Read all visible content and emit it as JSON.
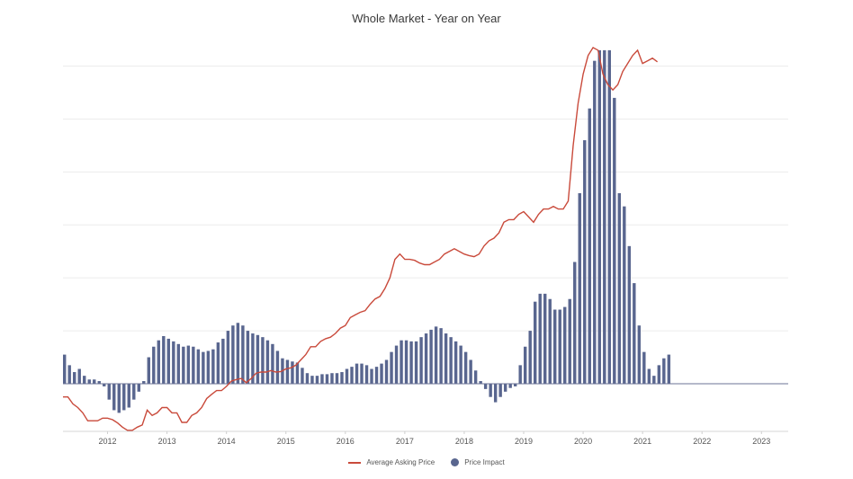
{
  "chart_data": {
    "type": "bar+line",
    "title": "Whole Market - Year on Year",
    "x_tick_labels": [
      "2012",
      "2013",
      "2014",
      "2015",
      "2016",
      "2017",
      "2018",
      "2019",
      "2020",
      "2021",
      "2022",
      "2023"
    ],
    "x_range": [
      2011.25,
      2023.45
    ],
    "y_range": [
      -0.9,
      6.4
    ],
    "grid": "horizontal",
    "legend_position": "bottom",
    "series": [
      {
        "name": "Average Asking Price",
        "type": "line",
        "color": "#c94a3b",
        "x_start": 2011.25,
        "x_step": 0.08333,
        "values": [
          -0.25,
          -0.25,
          -0.38,
          -0.45,
          -0.55,
          -0.7,
          -0.7,
          -0.7,
          -0.65,
          -0.65,
          -0.68,
          -0.74,
          -0.82,
          -0.88,
          -0.88,
          -0.82,
          -0.78,
          -0.5,
          -0.6,
          -0.55,
          -0.45,
          -0.45,
          -0.55,
          -0.55,
          -0.73,
          -0.73,
          -0.6,
          -0.55,
          -0.45,
          -0.28,
          -0.2,
          -0.13,
          -0.13,
          -0.05,
          0.05,
          0.08,
          0.1,
          0.02,
          0.1,
          0.2,
          0.22,
          0.22,
          0.25,
          0.22,
          0.23,
          0.28,
          0.3,
          0.35,
          0.45,
          0.55,
          0.7,
          0.7,
          0.8,
          0.85,
          0.88,
          0.95,
          1.05,
          1.1,
          1.25,
          1.3,
          1.35,
          1.38,
          1.5,
          1.6,
          1.65,
          1.8,
          2.0,
          2.35,
          2.45,
          2.35,
          2.35,
          2.33,
          2.28,
          2.25,
          2.25,
          2.3,
          2.35,
          2.45,
          2.5,
          2.55,
          2.5,
          2.45,
          2.42,
          2.4,
          2.45,
          2.6,
          2.7,
          2.75,
          2.85,
          3.05,
          3.1,
          3.1,
          3.2,
          3.25,
          3.15,
          3.05,
          3.2,
          3.3,
          3.3,
          3.35,
          3.3,
          3.3,
          3.45,
          4.5,
          5.3,
          5.85,
          6.2,
          6.35,
          6.3,
          5.85,
          5.65,
          5.55,
          5.65,
          5.9,
          6.05,
          6.2,
          6.3,
          6.05,
          6.1,
          6.15,
          6.08
        ]
      },
      {
        "name": "Price Impact",
        "type": "bar",
        "color": "#59668f",
        "x_start": 2011.25,
        "x_step": 0.08333,
        "values": [
          0.55,
          0.35,
          0.22,
          0.28,
          0.15,
          0.08,
          0.08,
          0.05,
          -0.05,
          -0.3,
          -0.5,
          -0.55,
          -0.5,
          -0.45,
          -0.3,
          -0.15,
          0.05,
          0.5,
          0.7,
          0.82,
          0.9,
          0.85,
          0.8,
          0.75,
          0.7,
          0.72,
          0.7,
          0.65,
          0.6,
          0.62,
          0.65,
          0.78,
          0.85,
          1.0,
          1.1,
          1.15,
          1.1,
          1.0,
          0.95,
          0.92,
          0.88,
          0.82,
          0.75,
          0.62,
          0.48,
          0.45,
          0.42,
          0.4,
          0.3,
          0.2,
          0.15,
          0.15,
          0.18,
          0.18,
          0.2,
          0.2,
          0.22,
          0.28,
          0.32,
          0.38,
          0.38,
          0.35,
          0.28,
          0.32,
          0.38,
          0.45,
          0.6,
          0.72,
          0.82,
          0.82,
          0.8,
          0.8,
          0.88,
          0.95,
          1.02,
          1.08,
          1.05,
          0.95,
          0.88,
          0.8,
          0.72,
          0.6,
          0.45,
          0.25,
          0.05,
          -0.1,
          -0.25,
          -0.35,
          -0.25,
          -0.15,
          -0.08,
          -0.05,
          0.35,
          0.7,
          1.0,
          1.55,
          1.7,
          1.7,
          1.6,
          1.4,
          1.4,
          1.45,
          1.6,
          2.3,
          3.6,
          4.6,
          5.2,
          6.1,
          6.3,
          6.3,
          6.3,
          5.4,
          3.6,
          3.35,
          2.6,
          1.9,
          1.1,
          0.6,
          0.28,
          0.15,
          0.35,
          0.48,
          0.55
        ]
      }
    ]
  }
}
